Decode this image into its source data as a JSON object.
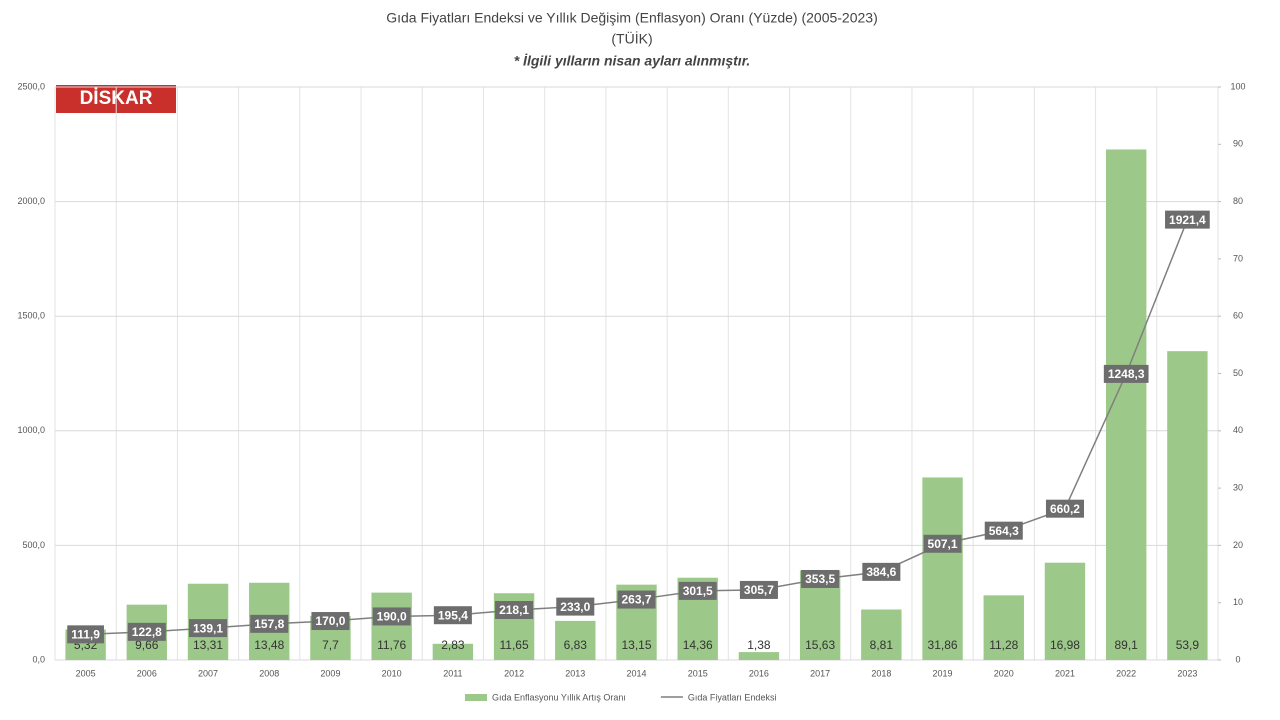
{
  "chart_data": {
    "type": "bar-line",
    "title": "Gıda Fiyatları Endeksi ve Yıllık Değişim (Enflasyon) Oranı (Yüzde) (2005-2023)",
    "title2": "(TÜİK)",
    "subtitle": "* İlgili yılların nisan ayları alınmıştır.",
    "logo": "DİSKAR",
    "categories": [
      "2005",
      "2006",
      "2007",
      "2008",
      "2009",
      "2010",
      "2011",
      "2012",
      "2013",
      "2014",
      "2015",
      "2016",
      "2017",
      "2018",
      "2019",
      "2020",
      "2021",
      "2022",
      "2023"
    ],
    "series": [
      {
        "name": "Gıda Enflasyonu Yıllık Artış Oranı",
        "type": "bar",
        "axis": "y2",
        "color": "#9cc98a",
        "values": [
          5.32,
          9.66,
          13.31,
          13.48,
          7.7,
          11.76,
          2.83,
          11.65,
          6.83,
          13.15,
          14.36,
          1.38,
          15.63,
          8.81,
          31.86,
          11.28,
          16.98,
          89.1,
          53.9
        ],
        "value_labels": [
          "5,32",
          "9,66",
          "13,31",
          "13,48",
          "7,7",
          "11,76",
          "2,83",
          "11,65",
          "6,83",
          "13,15",
          "14,36",
          "1,38",
          "15,63",
          "8,81",
          "31,86",
          "11,28",
          "16,98",
          "89,1",
          "53,9"
        ]
      },
      {
        "name": "Gıda Fiyatları Endeksi",
        "type": "line",
        "axis": "y",
        "color": "#7f7f7f",
        "values": [
          111.9,
          122.8,
          139.1,
          157.8,
          170.0,
          190.0,
          195.4,
          218.1,
          233.0,
          263.7,
          301.5,
          305.7,
          353.5,
          384.6,
          507.1,
          564.3,
          660.2,
          1248.3,
          1921.4
        ],
        "value_labels": [
          "111,9",
          "122,8",
          "139,1",
          "157,8",
          "170,0",
          "190,0",
          "195,4",
          "218,1",
          "233,0",
          "263,7",
          "301,5",
          "305,7",
          "353,5",
          "384,6",
          "507,1",
          "564,3",
          "660,2",
          "1248,3",
          "1921,4"
        ]
      }
    ],
    "ylim": [
      0,
      2500
    ],
    "yticks": [
      {
        "value": 0,
        "label": "0,0"
      },
      {
        "value": 500,
        "label": "500,0"
      },
      {
        "value": 1000,
        "label": "1000,0"
      },
      {
        "value": 1500,
        "label": "1500,0"
      },
      {
        "value": 2000,
        "label": "2000,0"
      },
      {
        "value": 2500,
        "label": "2500,0"
      }
    ],
    "y2lim": [
      0,
      100
    ],
    "y2ticks": [
      0,
      10,
      20,
      30,
      40,
      50,
      60,
      70,
      80,
      90,
      100
    ],
    "grid": true,
    "legend": "bottom"
  }
}
